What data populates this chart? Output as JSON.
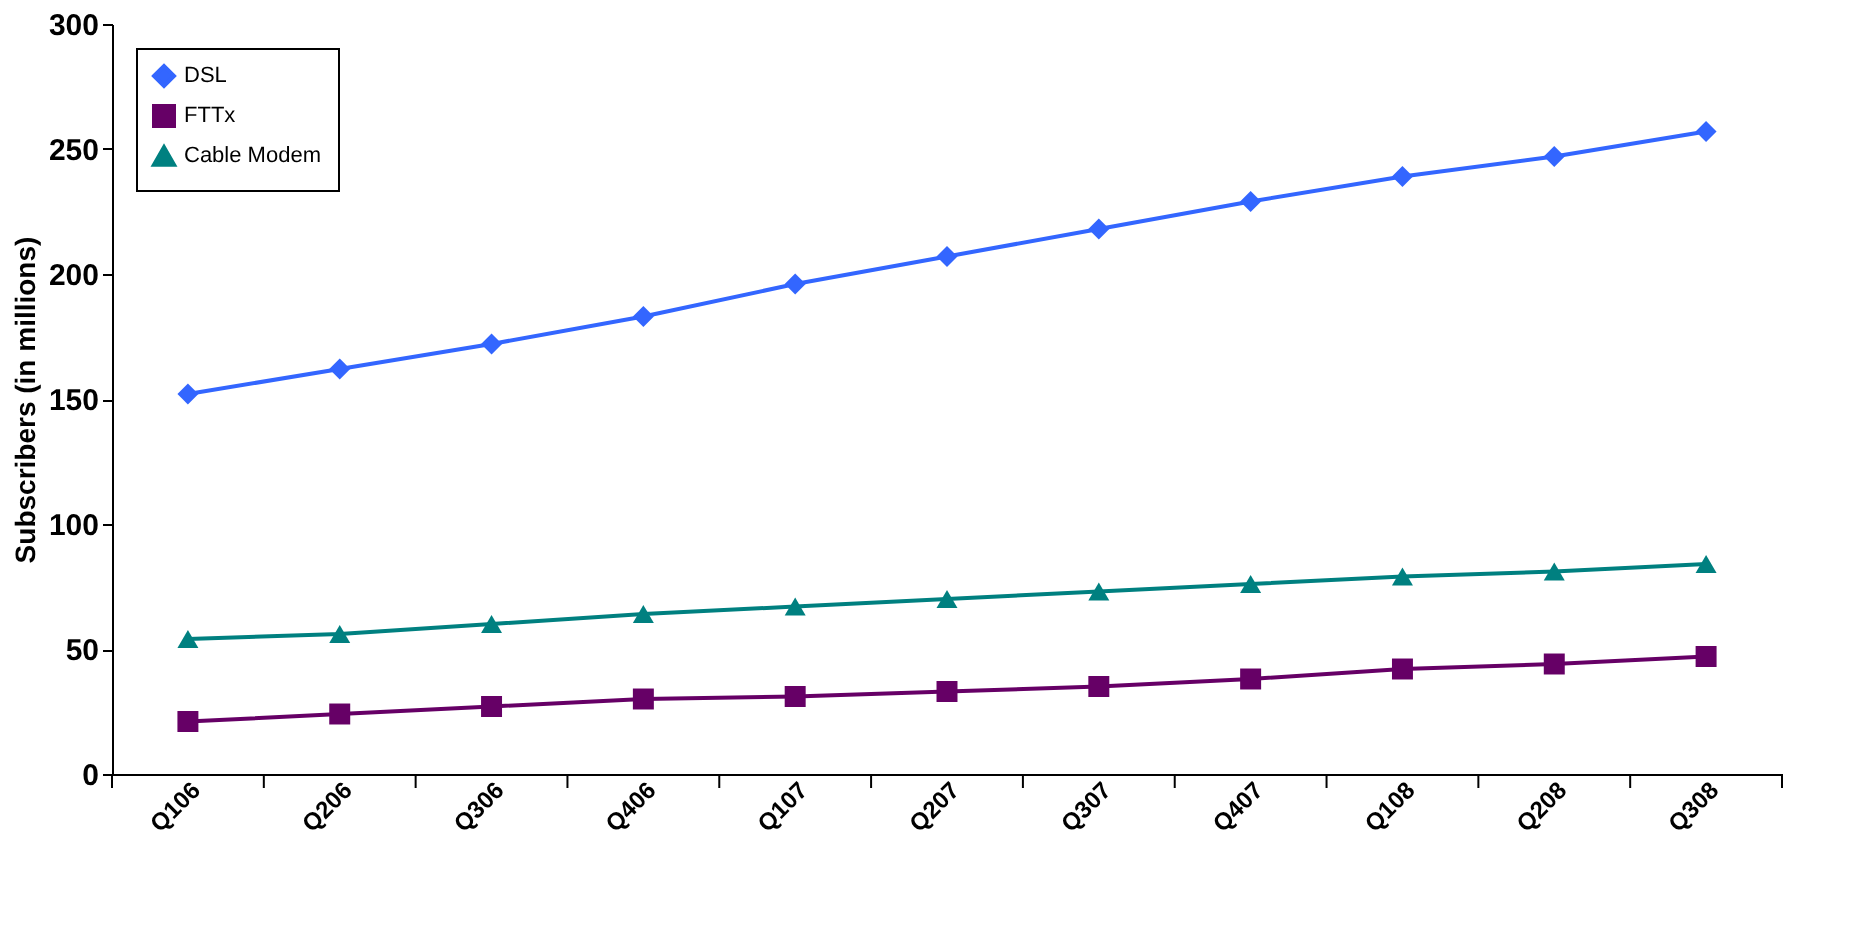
{
  "chart_data": {
    "type": "line",
    "ylabel": "Subscribers (in millions)",
    "categories": [
      "Q106",
      "Q206",
      "Q306",
      "Q406",
      "Q107",
      "Q207",
      "Q307",
      "Q407",
      "Q108",
      "Q208",
      "Q308"
    ],
    "series": [
      {
        "name": "DSL",
        "color": "#3366ff",
        "marker": "diamond",
        "values": [
          152,
          162,
          172,
          183,
          196,
          207,
          218,
          229,
          239,
          247,
          257
        ]
      },
      {
        "name": "FTTx",
        "color": "#660066",
        "marker": "square",
        "values": [
          21,
          24,
          27,
          30,
          31,
          33,
          35,
          38,
          42,
          44,
          47
        ]
      },
      {
        "name": "Cable Modem",
        "color": "#008080",
        "marker": "triangle",
        "values": [
          54,
          56,
          60,
          64,
          67,
          70,
          73,
          76,
          79,
          81,
          84
        ]
      }
    ],
    "ylim": [
      0,
      300
    ],
    "yticks": [
      0,
      50,
      100,
      150,
      200,
      250,
      300
    ],
    "grid": false,
    "legend": "top left",
    "line_style": "solid"
  }
}
